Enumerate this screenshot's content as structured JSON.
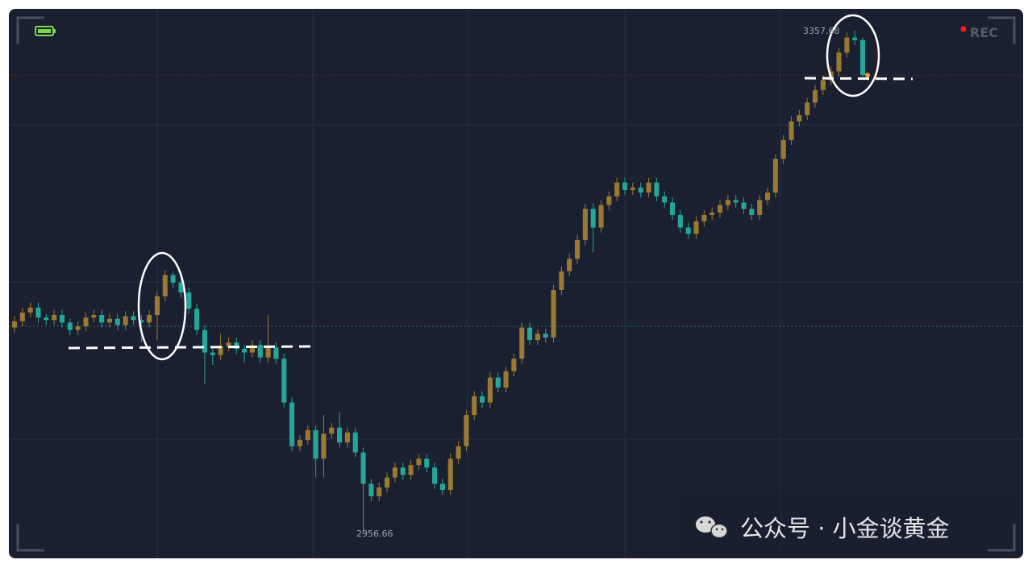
{
  "chart_data": {
    "type": "candlestick",
    "up_color": "#9a7a32",
    "down_color": "#26a69a",
    "ylim": [
      2925,
      3375
    ],
    "rec_label": "REC",
    "watermark": "公众号 · 小金谈黄金",
    "candles": [
      [
        3120,
        3129,
        3116,
        3125
      ],
      [
        3125,
        3136,
        3121,
        3132
      ],
      [
        3132,
        3140,
        3128,
        3136
      ],
      [
        3136,
        3140,
        3124,
        3128
      ],
      [
        3128,
        3131,
        3122,
        3126
      ],
      [
        3126,
        3134,
        3122,
        3130
      ],
      [
        3130,
        3134,
        3120,
        3124
      ],
      [
        3124,
        3127,
        3114,
        3118
      ],
      [
        3118,
        3125,
        3114,
        3121
      ],
      [
        3121,
        3132,
        3117,
        3128
      ],
      [
        3128,
        3134,
        3124,
        3130
      ],
      [
        3130,
        3134,
        3120,
        3124
      ],
      [
        3124,
        3131,
        3120,
        3127
      ],
      [
        3127,
        3131,
        3118,
        3122
      ],
      [
        3122,
        3133,
        3118,
        3129
      ],
      [
        3129,
        3133,
        3122,
        3126
      ],
      [
        3126,
        3130,
        3108,
        3124
      ],
      [
        3124,
        3134,
        3120,
        3130
      ],
      [
        3130,
        3149,
        3110,
        3145
      ],
      [
        3145,
        3166,
        3141,
        3162
      ],
      [
        3162,
        3164,
        3152,
        3156
      ],
      [
        3156,
        3160,
        3144,
        3148
      ],
      [
        3148,
        3152,
        3131,
        3135
      ],
      [
        3135,
        3139,
        3114,
        3118
      ],
      [
        3118,
        3122,
        3075,
        3100
      ],
      [
        3100,
        3104,
        3090,
        3098
      ],
      [
        3098,
        3115,
        3094,
        3105
      ],
      [
        3105,
        3112,
        3101,
        3108
      ],
      [
        3108,
        3112,
        3099,
        3103
      ],
      [
        3103,
        3106,
        3092,
        3100
      ],
      [
        3100,
        3110,
        3096,
        3106
      ],
      [
        3106,
        3110,
        3092,
        3096
      ],
      [
        3096,
        3130,
        3092,
        3104
      ],
      [
        3104,
        3108,
        3091,
        3095
      ],
      [
        3095,
        3099,
        3056,
        3060
      ],
      [
        3060,
        3064,
        3021,
        3025
      ],
      [
        3025,
        3034,
        3021,
        3030
      ],
      [
        3030,
        3042,
        3026,
        3038
      ],
      [
        3038,
        3042,
        3000,
        3015
      ],
      [
        3015,
        3050,
        3000,
        3035
      ],
      [
        3035,
        3044,
        3031,
        3040
      ],
      [
        3040,
        3052,
        3024,
        3028
      ],
      [
        3028,
        3040,
        3024,
        3036
      ],
      [
        3036,
        3040,
        3016,
        3020
      ],
      [
        3020,
        3024,
        2956.66,
        2995
      ],
      [
        2995,
        2999,
        2981,
        2985
      ],
      [
        2985,
        2996,
        2981,
        2992
      ],
      [
        2992,
        3004,
        2988,
        3000
      ],
      [
        3000,
        3012,
        2996,
        3008
      ],
      [
        3008,
        3012,
        2998,
        3002
      ],
      [
        3002,
        3014,
        2998,
        3010
      ],
      [
        3010,
        3019,
        3006,
        3015
      ],
      [
        3015,
        3019,
        3004,
        3008
      ],
      [
        3008,
        3012,
        2991,
        2995
      ],
      [
        2995,
        2999,
        2986,
        2990
      ],
      [
        2990,
        3019,
        2986,
        3015
      ],
      [
        3015,
        3029,
        3011,
        3025
      ],
      [
        3025,
        3054,
        3021,
        3050
      ],
      [
        3050,
        3069,
        3046,
        3065
      ],
      [
        3065,
        3069,
        3056,
        3060
      ],
      [
        3060,
        3084,
        3056,
        3080
      ],
      [
        3080,
        3084,
        3068,
        3072
      ],
      [
        3072,
        3089,
        3068,
        3085
      ],
      [
        3085,
        3099,
        3081,
        3095
      ],
      [
        3095,
        3124,
        3091,
        3120
      ],
      [
        3120,
        3124,
        3106,
        3110
      ],
      [
        3110,
        3119,
        3106,
        3115
      ],
      [
        3115,
        3119,
        3108,
        3112
      ],
      [
        3112,
        3154,
        3108,
        3150
      ],
      [
        3150,
        3169,
        3146,
        3165
      ],
      [
        3165,
        3179,
        3161,
        3175
      ],
      [
        3175,
        3194,
        3171,
        3190
      ],
      [
        3190,
        3219,
        3186,
        3215
      ],
      [
        3215,
        3219,
        3180,
        3200
      ],
      [
        3200,
        3222,
        3196,
        3218
      ],
      [
        3218,
        3229,
        3214,
        3225
      ],
      [
        3225,
        3240,
        3221,
        3236
      ],
      [
        3236,
        3240,
        3226,
        3230
      ],
      [
        3230,
        3236,
        3226,
        3232
      ],
      [
        3232,
        3236,
        3224,
        3228
      ],
      [
        3228,
        3240,
        3224,
        3236
      ],
      [
        3236,
        3240,
        3221,
        3225
      ],
      [
        3225,
        3229,
        3216,
        3220
      ],
      [
        3220,
        3224,
        3206,
        3210
      ],
      [
        3210,
        3214,
        3196,
        3200
      ],
      [
        3200,
        3204,
        3191,
        3195
      ],
      [
        3195,
        3209,
        3191,
        3205
      ],
      [
        3205,
        3214,
        3201,
        3210
      ],
      [
        3210,
        3216,
        3206,
        3212
      ],
      [
        3212,
        3222,
        3208,
        3218
      ],
      [
        3218,
        3226,
        3214,
        3222
      ],
      [
        3222,
        3226,
        3216,
        3220
      ],
      [
        3220,
        3224,
        3211,
        3215
      ],
      [
        3215,
        3219,
        3206,
        3210
      ],
      [
        3210,
        3226,
        3206,
        3222
      ],
      [
        3222,
        3232,
        3218,
        3228
      ],
      [
        3228,
        3259,
        3224,
        3255
      ],
      [
        3255,
        3274,
        3251,
        3270
      ],
      [
        3270,
        3289,
        3266,
        3285
      ],
      [
        3285,
        3294,
        3281,
        3290
      ],
      [
        3290,
        3304,
        3286,
        3300
      ],
      [
        3300,
        3314,
        3296,
        3310
      ],
      [
        3310,
        3322,
        3306,
        3318
      ],
      [
        3318,
        3329,
        3314,
        3325
      ],
      [
        3325,
        3344,
        3321,
        3340
      ],
      [
        3340,
        3356,
        3336,
        3352
      ],
      [
        3352,
        3357.68,
        3346,
        3350
      ],
      [
        3350,
        3352,
        3318,
        3322
      ]
    ]
  }
}
